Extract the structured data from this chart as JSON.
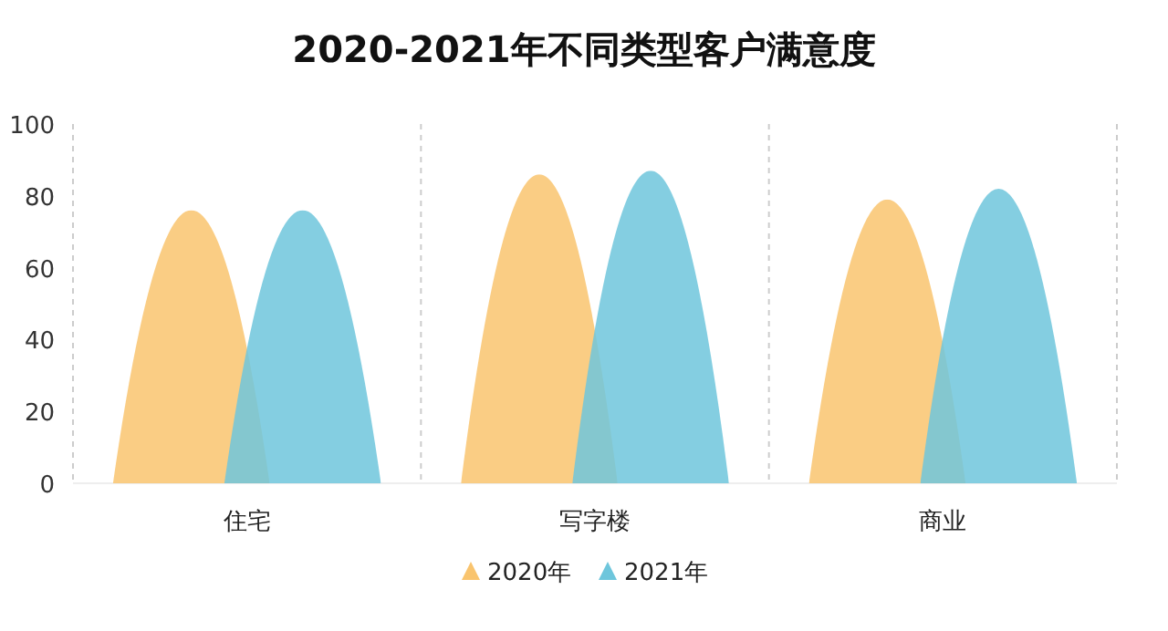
{
  "chart_data": {
    "type": "bar",
    "title": "2020-2021年不同类型客户满意度",
    "categories": [
      "住宅",
      "写字楼",
      "商业"
    ],
    "series": [
      {
        "name": "2020年",
        "color": "#f9c46e",
        "values": [
          76,
          86,
          79
        ]
      },
      {
        "name": "2021年",
        "color": "#6ec6dc",
        "values": [
          76,
          87,
          82
        ]
      }
    ],
    "ylim": [
      0,
      100
    ],
    "yticks": [
      0,
      20,
      40,
      60,
      80,
      100
    ],
    "grid": "x",
    "legend": "bottom"
  }
}
